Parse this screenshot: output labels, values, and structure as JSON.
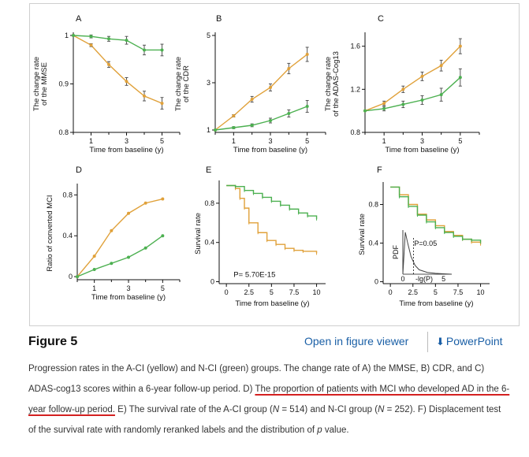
{
  "colors": {
    "acl": "#e0a13a",
    "ncl": "#4cb050",
    "link": "#1a5fa6"
  },
  "figure": {
    "title": "Figure 5",
    "open_viewer": "Open in figure viewer",
    "powerpoint": "PowerPoint",
    "caption_parts": [
      "Progression rates in the A-CI (yellow) and N-CI (green) groups. The change rate of A) the MMSE, B) CDR, and C) ADAS-cog13 scores within a 6-year follow-up period. D) ",
      "The proportion of patients with MCI who developed AD in the 6-year follow-up period.",
      " E) The survival rate of the A-CI group (",
      "N",
      " = 514) and N-CI group (",
      "N",
      " = 252). F) Displacement test of the survival rate with randomly reranked labels and the distribution of ",
      "p",
      " value."
    ]
  },
  "chart_data": [
    {
      "panel": "A",
      "type": "line",
      "ylabel": "The change rate of the MMSE",
      "xlabel": "Time from baseline (y)",
      "xlim": [
        0,
        6
      ],
      "ylim": [
        0.8,
        1.0
      ],
      "xticks": [
        1,
        3,
        5
      ],
      "yticks": [
        0.8,
        0.9,
        1
      ],
      "ytick_labels": [
        "0.8",
        "0.9",
        "1"
      ],
      "series": [
        {
          "name": "A-CI",
          "x": [
            0,
            1,
            2,
            3,
            4,
            5
          ],
          "values": [
            1.0,
            0.98,
            0.94,
            0.905,
            0.875,
            0.86
          ],
          "err": [
            0,
            0.003,
            0.006,
            0.008,
            0.01,
            0.012
          ]
        },
        {
          "name": "N-CI",
          "x": [
            0,
            1,
            2,
            3,
            4,
            5
          ],
          "values": [
            1.0,
            0.998,
            0.993,
            0.99,
            0.97,
            0.97
          ],
          "err": [
            0,
            0.003,
            0.005,
            0.008,
            0.01,
            0.012
          ]
        }
      ]
    },
    {
      "panel": "B",
      "type": "line",
      "ylabel": "The change rate of the CDR",
      "xlabel": "Time from baseline (y)",
      "xlim": [
        0,
        6
      ],
      "ylim": [
        0.9,
        5.0
      ],
      "xticks": [
        1,
        3,
        5
      ],
      "yticks": [
        1,
        3,
        5
      ],
      "ytick_labels": [
        "1",
        "3",
        "5"
      ],
      "series": [
        {
          "name": "A-CI",
          "x": [
            0,
            1,
            2,
            3,
            4,
            5
          ],
          "values": [
            1.0,
            1.6,
            2.3,
            2.8,
            3.6,
            4.2
          ],
          "err": [
            0,
            0.05,
            0.12,
            0.15,
            0.22,
            0.3
          ]
        },
        {
          "name": "N-CI",
          "x": [
            0,
            1,
            2,
            3,
            4,
            5
          ],
          "values": [
            1.0,
            1.1,
            1.2,
            1.4,
            1.7,
            2.0
          ],
          "err": [
            0,
            0.04,
            0.06,
            0.1,
            0.15,
            0.25
          ]
        }
      ]
    },
    {
      "panel": "C",
      "type": "line",
      "ylabel": "The change rate of the ADAS-Cog13",
      "xlabel": "Time from baseline (y)",
      "xlim": [
        0,
        6
      ],
      "ylim": [
        0.8,
        1.7
      ],
      "xticks": [
        1,
        3,
        5
      ],
      "yticks": [
        0.8,
        1.2,
        1.6
      ],
      "ytick_labels": [
        "0.8",
        "1.2",
        "1.6"
      ],
      "series": [
        {
          "name": "A-CI",
          "x": [
            0,
            1,
            2,
            3,
            4,
            5
          ],
          "values": [
            1.0,
            1.07,
            1.2,
            1.32,
            1.42,
            1.6
          ],
          "err": [
            0,
            0.02,
            0.03,
            0.04,
            0.05,
            0.07
          ]
        },
        {
          "name": "N-CI",
          "x": [
            0,
            1,
            2,
            3,
            4,
            5
          ],
          "values": [
            1.0,
            1.02,
            1.06,
            1.1,
            1.15,
            1.31
          ],
          "err": [
            0,
            0.02,
            0.03,
            0.04,
            0.06,
            0.08
          ]
        }
      ]
    },
    {
      "panel": "D",
      "type": "line",
      "ylabel": "Ratio of converted MCI",
      "xlabel": "Time from baseline (y)",
      "xlim": [
        0,
        6
      ],
      "ylim": [
        -0.03,
        0.88
      ],
      "xticks": [
        1,
        3,
        5
      ],
      "yticks": [
        0,
        0.4,
        0.8
      ],
      "ytick_labels": [
        "0",
        "0.4",
        "0.8"
      ],
      "series": [
        {
          "name": "A-CI",
          "x": [
            0,
            1,
            2,
            3,
            4,
            5
          ],
          "values": [
            0.0,
            0.2,
            0.45,
            0.62,
            0.72,
            0.76
          ]
        },
        {
          "name": "N-CI",
          "x": [
            0,
            1,
            2,
            3,
            4,
            5
          ],
          "values": [
            0.0,
            0.07,
            0.13,
            0.19,
            0.28,
            0.4
          ]
        }
      ]
    },
    {
      "panel": "E",
      "type": "line",
      "ylabel": "Survival rate",
      "xlabel": "Time from baseline (y)",
      "xlim": [
        -0.8,
        11
      ],
      "ylim": [
        -0.02,
        1.0
      ],
      "xticks": [
        0,
        2.5,
        5,
        7.5,
        10
      ],
      "yticks": [
        0,
        0.4,
        0.8
      ],
      "ytick_labels": [
        "0",
        "0.4",
        "0.8"
      ],
      "annotation": "P= 5.70E-15",
      "series": [
        {
          "name": "A-CI",
          "x": [
            0,
            1,
            1.5,
            2,
            2.5,
            3.5,
            4.5,
            5.5,
            6.5,
            7.5,
            8.5,
            10
          ],
          "values": [
            0.98,
            0.95,
            0.85,
            0.75,
            0.6,
            0.5,
            0.42,
            0.38,
            0.34,
            0.32,
            0.31,
            0.29
          ]
        },
        {
          "name": "N-CI",
          "x": [
            0,
            1,
            2,
            3,
            4,
            5,
            6,
            7,
            8,
            9,
            10
          ],
          "values": [
            0.98,
            0.97,
            0.93,
            0.9,
            0.86,
            0.82,
            0.78,
            0.74,
            0.7,
            0.67,
            0.64
          ]
        }
      ]
    },
    {
      "panel": "F",
      "type": "line",
      "ylabel": "Survival rate",
      "xlabel": "Time from baseline (y)",
      "xlim": [
        -0.8,
        11
      ],
      "ylim": [
        -0.02,
        1.0
      ],
      "xticks": [
        0,
        2.5,
        5,
        7.5,
        10
      ],
      "yticks": [
        0,
        0.4,
        0.8
      ],
      "ytick_labels": [
        "0",
        "0.4",
        "0.8"
      ],
      "series": [
        {
          "name": "A-CI",
          "x": [
            0,
            1,
            2,
            3,
            4,
            5,
            6,
            7,
            8,
            9,
            10
          ],
          "values": [
            0.98,
            0.9,
            0.8,
            0.7,
            0.64,
            0.58,
            0.52,
            0.48,
            0.44,
            0.41,
            0.39
          ]
        },
        {
          "name": "N-CI",
          "x": [
            0,
            1,
            2,
            3,
            4,
            5,
            6,
            7,
            8,
            9,
            10
          ],
          "values": [
            0.98,
            0.88,
            0.78,
            0.69,
            0.62,
            0.56,
            0.51,
            0.47,
            0.44,
            0.43,
            0.41
          ]
        }
      ],
      "inset": {
        "ylabel": "PDF",
        "xlabel": "-lg(P)",
        "xticks": [
          0,
          5
        ],
        "xtick_labels": [
          "0",
          "5"
        ],
        "annotation": "P=0.05",
        "x": [
          0,
          0.3,
          0.6,
          1.0,
          1.5,
          2.0,
          3.0,
          4.0,
          5.0,
          6.0
        ],
        "values": [
          0,
          0.95,
          0.7,
          0.4,
          0.2,
          0.1,
          0.04,
          0.02,
          0.01,
          0.0
        ],
        "threshold": 1.3
      }
    }
  ]
}
